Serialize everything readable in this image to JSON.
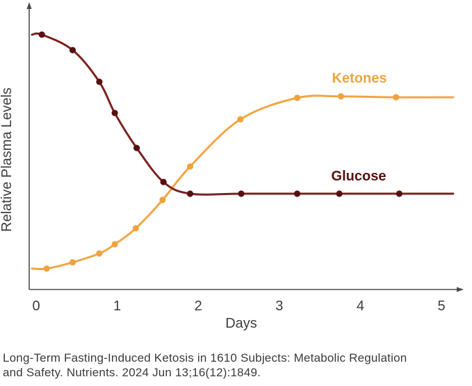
{
  "caption": {
    "line1": "Long-Term Fasting-Induced Ketosis in 1610 Subjects: Metabolic Regulation",
    "line2": "and Safety. Nutrients. 2024 Jun 13;16(12):1849."
  },
  "colors": {
    "background": "#ffffff",
    "axis": "#4c4c4c",
    "tick_text": "#3b3b3b",
    "axis_label_text": "#3d3d3d",
    "caption_text": "#3a3a3a"
  },
  "chart_data": {
    "type": "line",
    "title": "",
    "xlabel": "Days",
    "ylabel": "Relative Plasma Levels",
    "x_ticks": [
      0,
      1,
      2,
      3,
      4,
      5
    ],
    "xlim": [
      0,
      5.2
    ],
    "ylim": [
      0,
      1
    ],
    "y_axis_unlabeled": true,
    "grid": false,
    "legend_position": "inline labels above each curve",
    "series": [
      {
        "name": "Ketones",
        "shape": "rising sigmoid, plateaus after ~day 3",
        "color": "#F0A644",
        "marker_color": "#EFA33F",
        "label_color": "#EDA53F",
        "days": [
          0.13,
          0.45,
          0.78,
          0.97,
          1.23,
          1.56,
          1.9,
          2.52,
          3.22,
          3.76,
          4.44
        ],
        "levels": [
          0.073,
          0.095,
          0.126,
          0.158,
          0.214,
          0.313,
          0.43,
          0.595,
          0.67,
          0.675,
          0.672
        ]
      },
      {
        "name": "Glucose",
        "shape": "falling sigmoid, plateaus after ~day 1.9",
        "color": "#7B211E",
        "marker_color": "#541110",
        "label_color": "#57110F",
        "days": [
          0.07,
          0.45,
          0.78,
          0.97,
          1.24,
          1.57,
          1.9,
          2.53,
          3.22,
          3.74,
          4.48
        ],
        "levels": [
          0.891,
          0.837,
          0.726,
          0.617,
          0.495,
          0.376,
          0.335,
          0.335,
          0.335,
          0.335,
          0.335
        ]
      }
    ]
  }
}
